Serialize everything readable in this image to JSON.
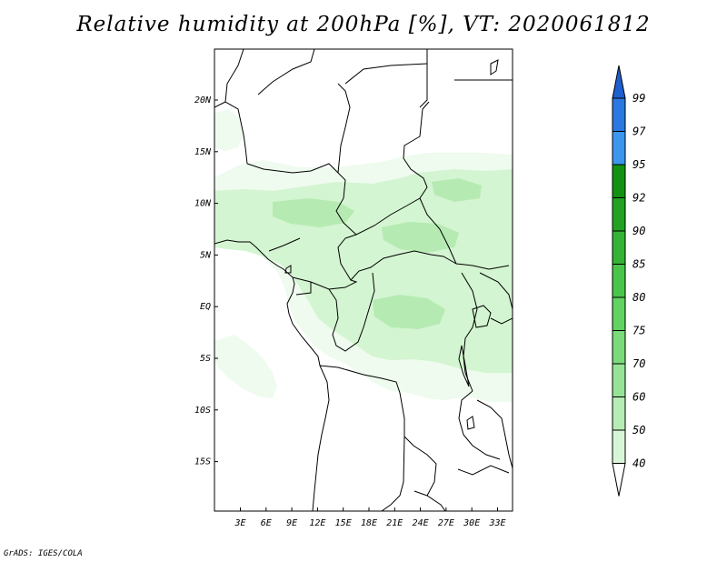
{
  "title": "Relative humidity at 200hPa [%], VT: 2020061812",
  "credit": "GrADS: IGES/COLA",
  "map": {
    "lat_labels": [
      "20N",
      "15N",
      "10N",
      "5N",
      "EQ",
      "5S",
      "10S",
      "15S"
    ],
    "lon_labels": [
      "3E",
      "6E",
      "9E",
      "12E",
      "15E",
      "18E",
      "21E",
      "24E",
      "27E",
      "30E",
      "33E"
    ],
    "fill_colors": [
      "#eefbee",
      "#d3f5d1",
      "#b5ebb2"
    ]
  },
  "colorbar": {
    "labels": [
      "99",
      "97",
      "95",
      "92",
      "90",
      "85",
      "80",
      "75",
      "70",
      "60",
      "50",
      "40"
    ],
    "colors": [
      "#1e5fd0",
      "#2a78e0",
      "#3c96ee",
      "#129212",
      "#21a321",
      "#35b335",
      "#49c649",
      "#61d361",
      "#7adb7a",
      "#96e396",
      "#b6ecb6",
      "#d7f6d7",
      "#eefbee"
    ],
    "triangle_top_color": "#1e5fd0",
    "triangle_bottom_color": "#ffffff"
  }
}
